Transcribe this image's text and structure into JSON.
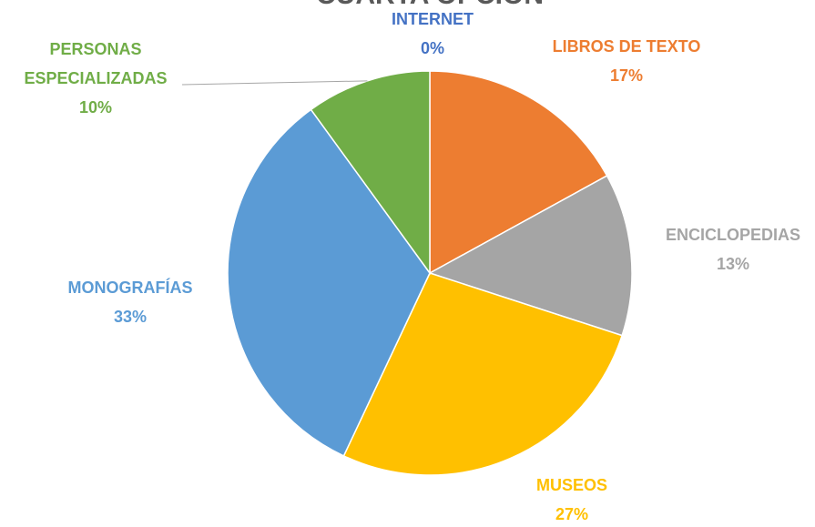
{
  "chart_data": {
    "type": "pie",
    "title": "CUARTA OPCIÓN",
    "categories": [
      "INTERNET",
      "LIBROS DE TEXTO",
      "ENCICLOPEDIAS",
      "MUSEOS",
      "MONOGRAFÍAS",
      "PERSONAS ESPECIALIZADAS"
    ],
    "values": [
      0,
      17,
      13,
      27,
      33,
      10
    ],
    "value_labels": [
      "0%",
      "17%",
      "13%",
      "27%",
      "33%",
      "10%"
    ],
    "colors": [
      "#4472c4",
      "#ed7d31",
      "#a5a5a5",
      "#ffc000",
      "#5b9bd5",
      "#70ad47"
    ]
  }
}
